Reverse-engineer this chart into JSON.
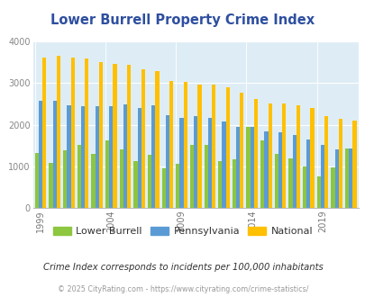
{
  "title": "Lower Burrell Property Crime Index",
  "years": [
    1999,
    2000,
    2001,
    2002,
    2003,
    2004,
    2005,
    2006,
    2007,
    2008,
    2009,
    2010,
    2011,
    2012,
    2013,
    2014,
    2015,
    2016,
    2017,
    2018,
    2019,
    2020,
    2021
  ],
  "lower_burrell": [
    1330,
    1080,
    1380,
    1510,
    1300,
    1620,
    1410,
    1130,
    1270,
    960,
    1070,
    1510,
    1510,
    1130,
    1160,
    1950,
    1630,
    1300,
    1200,
    1000,
    750,
    980,
    1420
  ],
  "pennsylvania": [
    2580,
    2580,
    2470,
    2450,
    2450,
    2450,
    2480,
    2400,
    2460,
    2220,
    2160,
    2210,
    2170,
    2080,
    1940,
    1940,
    1830,
    1810,
    1760,
    1650,
    1510,
    1400,
    1430
  ],
  "national": [
    3610,
    3660,
    3620,
    3600,
    3510,
    3460,
    3440,
    3330,
    3280,
    3060,
    3040,
    2960,
    2960,
    2890,
    2760,
    2610,
    2510,
    2500,
    2460,
    2400,
    2200,
    2150,
    2100
  ],
  "lb_color": "#8dc63f",
  "pa_color": "#5b9bd5",
  "nat_color": "#ffc000",
  "bg_color": "#deedf5",
  "title_color": "#2e4fa0",
  "ylabel_max": 4000,
  "subtitle": "Crime Index corresponds to incidents per 100,000 inhabitants",
  "footer": "© 2025 CityRating.com - https://www.cityrating.com/crime-statistics/",
  "legend_labels": [
    "Lower Burrell",
    "Pennsylvania",
    "National"
  ],
  "bar_width": 0.27,
  "tick_years": [
    1999,
    2004,
    2009,
    2014,
    2019
  ]
}
